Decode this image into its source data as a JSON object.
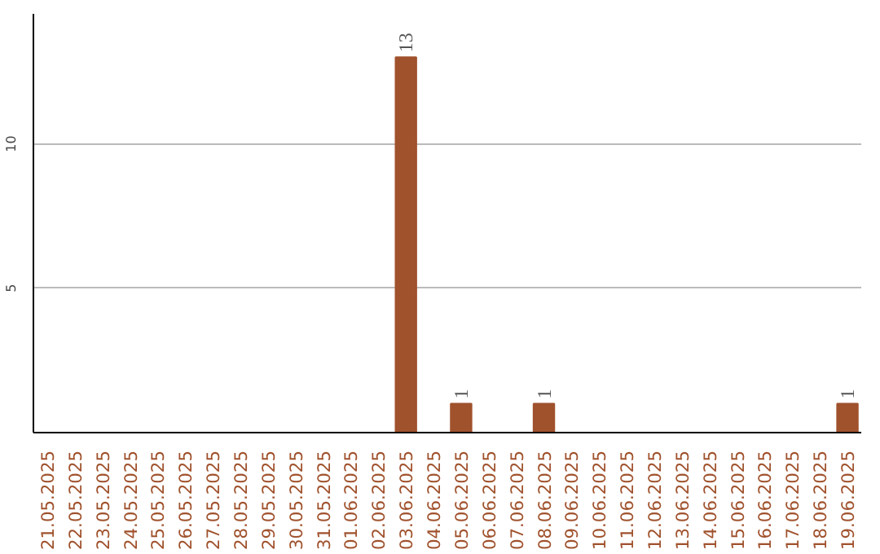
{
  "chart_data": {
    "type": "bar",
    "categories": [
      "21.05.2025",
      "22.05.2025",
      "23.05.2025",
      "24.05.2025",
      "25.05.2025",
      "26.05.2025",
      "27.05.2025",
      "28.05.2025",
      "29.05.2025",
      "30.05.2025",
      "31.05.2025",
      "01.06.2025",
      "02.06.2025",
      "03.06.2025",
      "04.06.2025",
      "05.06.2025",
      "06.06.2025",
      "07.06.2025",
      "08.06.2025",
      "09.06.2025",
      "10.06.2025",
      "11.06.2025",
      "12.06.2025",
      "13.06.2025",
      "14.06.2025",
      "15.06.2025",
      "16.06.2025",
      "17.06.2025",
      "18.06.2025",
      "19.06.2025"
    ],
    "values": [
      0,
      0,
      0,
      0,
      0,
      0,
      0,
      0,
      0,
      0,
      0,
      0,
      0,
      13,
      0,
      1,
      0,
      0,
      1,
      0,
      0,
      0,
      0,
      0,
      0,
      0,
      0,
      0,
      0,
      1
    ],
    "value_labels": [
      null,
      null,
      null,
      null,
      null,
      null,
      null,
      null,
      null,
      null,
      null,
      null,
      null,
      "13",
      null,
      "1",
      null,
      null,
      "1",
      null,
      null,
      null,
      null,
      null,
      null,
      null,
      null,
      null,
      null,
      "1"
    ],
    "color": "#a0522d",
    "ylim": [
      0,
      14.5
    ],
    "yticks": [
      5,
      10
    ],
    "grid": "y"
  }
}
